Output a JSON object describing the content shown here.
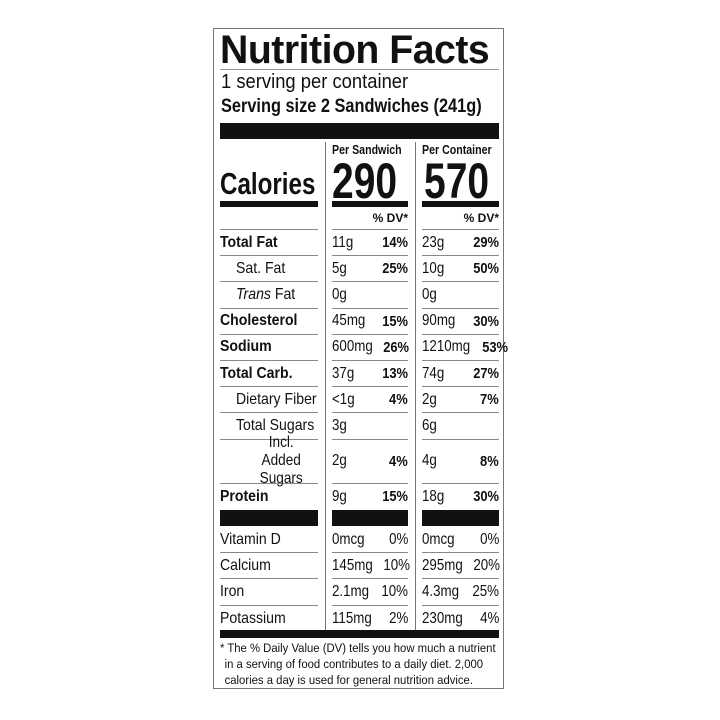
{
  "title": "Nutrition Facts",
  "servings_per_container": "1 serving per container",
  "serving_size": "Serving size 2 Sandwiches (241g)",
  "columns": [
    {
      "header": "Per Sandwich",
      "calories": "290",
      "dv_header": "% DV*"
    },
    {
      "header": "Per Container",
      "calories": "570",
      "dv_header": "% DV*"
    }
  ],
  "calories_label": "Calories",
  "nutrients": [
    {
      "name": "Total Fat",
      "bold": true,
      "indent": 0,
      "v1": "11g",
      "p1": "14%",
      "v2": "23g",
      "p2": "29%"
    },
    {
      "name": "Sat. Fat",
      "bold": false,
      "indent": 1,
      "v1": "5g",
      "p1": "25%",
      "v2": "10g",
      "p2": "50%"
    },
    {
      "name": "Trans Fat",
      "bold": false,
      "indent": 1,
      "italic_prefix": "Trans",
      "v1": "0g",
      "p1": "",
      "v2": "0g",
      "p2": ""
    },
    {
      "name": "Cholesterol",
      "bold": true,
      "indent": 0,
      "v1": "45mg",
      "p1": "15%",
      "v2": "90mg",
      "p2": "30%"
    },
    {
      "name": "Sodium",
      "bold": true,
      "indent": 0,
      "v1": "600mg",
      "p1": "26%",
      "v2": "1210mg",
      "p2": "53%"
    },
    {
      "name": "Total Carb.",
      "bold": true,
      "indent": 0,
      "v1": "37g",
      "p1": "13%",
      "v2": "74g",
      "p2": "27%"
    },
    {
      "name": "Dietary Fiber",
      "bold": false,
      "indent": 1,
      "v1": "<1g",
      "p1": "4%",
      "v2": "2g",
      "p2": "7%"
    },
    {
      "name": "Total Sugars",
      "bold": false,
      "indent": 1,
      "v1": "3g",
      "p1": "",
      "v2": "6g",
      "p2": ""
    },
    {
      "name": "Incl. Added Sugars",
      "bold": false,
      "indent": 2,
      "v1": "2g",
      "p1": "4%",
      "v2": "4g",
      "p2": "8%"
    },
    {
      "name": "Protein",
      "bold": true,
      "indent": 0,
      "v1": "9g",
      "p1": "15%",
      "v2": "18g",
      "p2": "30%"
    }
  ],
  "vitamins": [
    {
      "name": "Vitamin D",
      "v1": "0mcg",
      "p1": "0%",
      "v2": "0mcg",
      "p2": "0%"
    },
    {
      "name": "Calcium",
      "v1": "145mg",
      "p1": "10%",
      "v2": "295mg",
      "p2": "20%"
    },
    {
      "name": "Iron",
      "v1": "2.1mg",
      "p1": "10%",
      "v2": "4.3mg",
      "p2": "25%"
    },
    {
      "name": "Potassium",
      "v1": "115mg",
      "p1": "2%",
      "v2": "230mg",
      "p2": "4%"
    }
  ],
  "footnote": [
    "* The % Daily Value (DV) tells you how much a nutrient",
    "in a serving of food contributes to a daily diet. 2,000",
    "calories a day is used for general nutrition advice."
  ]
}
